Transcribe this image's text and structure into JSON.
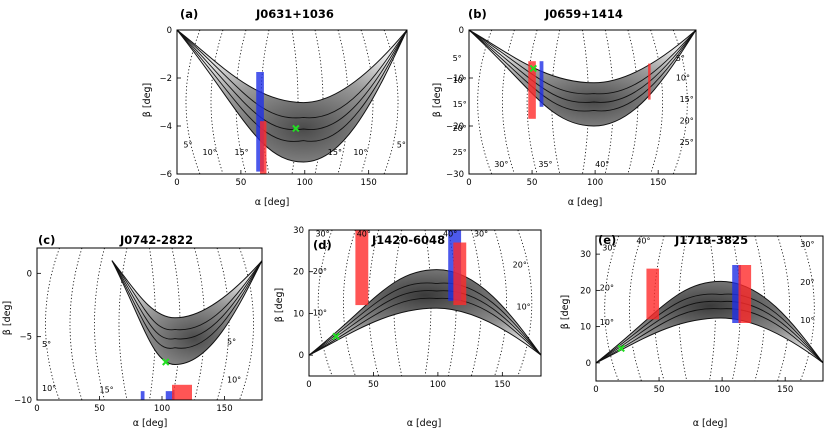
{
  "figure": {
    "colors": {
      "blue": "#1f2fe6",
      "red": "#ff2a2a",
      "green_marker": "#22dd22",
      "axis": "#000000",
      "contour": "#111111"
    }
  },
  "chart_data": [
    {
      "type": "contour",
      "panel": "(a)",
      "title": "J0631+1036",
      "xlabel": "α [deg]",
      "ylabel": "β [deg]",
      "xlim": [
        0,
        180
      ],
      "ylim": [
        -6,
        0
      ],
      "xticks": [
        0,
        50,
        100,
        150
      ],
      "yticks": [
        0,
        -2,
        -4,
        -6
      ],
      "xtick_labels": [
        "0",
        "50",
        "100",
        "150"
      ],
      "ytick_labels": [
        "0",
        "−2",
        "−4",
        "−6"
      ],
      "contour_labels": [
        {
          "text": "5°",
          "x": 5,
          "y": -4.9
        },
        {
          "text": "10°",
          "x": 20,
          "y": -5.2
        },
        {
          "text": "15°",
          "x": 45,
          "y": -5.2
        },
        {
          "text": "15°",
          "x": 118,
          "y": -5.2
        },
        {
          "text": "10°",
          "x": 138,
          "y": -5.2
        },
        {
          "text": "5°",
          "x": 172,
          "y": -4.9
        }
      ],
      "bars": [
        {
          "color": "blue",
          "x": [
            62,
            68
          ],
          "y": [
            -5.9,
            -1.75
          ]
        },
        {
          "color": "red",
          "x": [
            65,
            70
          ],
          "y": [
            -6.0,
            -3.8
          ]
        }
      ],
      "marker": {
        "x": 93,
        "y": -4.1
      },
      "region": {
        "x": [
          0,
          180
        ],
        "y_min": -5.5,
        "y_edge": 0
      }
    },
    {
      "type": "contour",
      "panel": "(b)",
      "title": "J0659+1414",
      "xlabel": "α [deg]",
      "ylabel": "β [deg]",
      "xlim": [
        0,
        180
      ],
      "ylim": [
        -30,
        0
      ],
      "xticks": [
        0,
        50,
        100,
        150
      ],
      "yticks": [
        0,
        -10,
        -20,
        -30
      ],
      "xtick_labels": [
        "0",
        "50",
        "100",
        "150"
      ],
      "ytick_labels": [
        "0",
        "−10",
        "−20",
        "−30"
      ],
      "contour_labels": [
        {
          "text": "5°",
          "x": -13,
          "y": -6.5
        },
        {
          "text": "10°",
          "x": -13,
          "y": -11
        },
        {
          "text": "15°",
          "x": -13,
          "y": -16
        },
        {
          "text": "20°",
          "x": -13,
          "y": -21
        },
        {
          "text": "25°",
          "x": -13,
          "y": -26
        },
        {
          "text": "30°",
          "x": 20,
          "y": -28.5
        },
        {
          "text": "35°",
          "x": 55,
          "y": -28.5
        },
        {
          "text": "40°",
          "x": 100,
          "y": -28.5
        },
        {
          "text": "5°",
          "x": 164,
          "y": -6.5
        },
        {
          "text": "10°",
          "x": 164,
          "y": -10.5
        },
        {
          "text": "15°",
          "x": 167,
          "y": -15
        },
        {
          "text": "20°",
          "x": 167,
          "y": -19.5
        },
        {
          "text": "25°",
          "x": 167,
          "y": -24
        }
      ],
      "bars": [
        {
          "color": "red",
          "x": [
            47,
            53
          ],
          "y": [
            -18.5,
            -6.5
          ]
        },
        {
          "color": "blue",
          "x": [
            56,
            59
          ],
          "y": [
            -16,
            -6.5
          ]
        },
        {
          "color": "red",
          "x": [
            142,
            144
          ],
          "y": [
            -14.5,
            -7
          ]
        }
      ],
      "marker": {
        "x": 51,
        "y": -8
      },
      "region": {
        "x": [
          0,
          180
        ],
        "y_min": -20,
        "y_edge": 0
      }
    },
    {
      "type": "contour",
      "panel": "(c)",
      "title": "J0742-2822",
      "xlabel": "α [deg]",
      "ylabel": "β [deg]",
      "xlim": [
        0,
        180
      ],
      "ylim": [
        -10,
        2
      ],
      "xticks": [
        0,
        50,
        100,
        150
      ],
      "yticks": [
        0,
        -5,
        -10
      ],
      "xtick_labels": [
        "0",
        "50",
        "100",
        "150"
      ],
      "ytick_labels": [
        "0",
        "−5",
        "−10"
      ],
      "contour_labels": [
        {
          "text": "5°",
          "x": 4,
          "y": -5.8
        },
        {
          "text": "10°",
          "x": 4,
          "y": -9.3
        },
        {
          "text": "15°",
          "x": 50,
          "y": -9.4
        },
        {
          "text": "5°",
          "x": 152,
          "y": -5.6
        },
        {
          "text": "10°",
          "x": 152,
          "y": -8.6
        }
      ],
      "bars": [
        {
          "color": "blue",
          "x": [
            83,
            86
          ],
          "y": [
            -10,
            -9.3
          ]
        },
        {
          "color": "blue",
          "x": [
            103,
            110
          ],
          "y": [
            -10,
            -9.3
          ]
        },
        {
          "color": "red",
          "x": [
            108,
            124
          ],
          "y": [
            -10,
            -8.8
          ]
        }
      ],
      "marker": {
        "x": 103,
        "y": -7.0
      },
      "region": {
        "x": [
          60,
          180
        ],
        "y_min": -7.2,
        "y_edge": 1
      }
    },
    {
      "type": "contour",
      "panel": "(d)",
      "title": "J1420-6048",
      "xlabel": "α [deg]",
      "ylabel": "β [deg]",
      "xlim": [
        0,
        180
      ],
      "ylim": [
        -5,
        30
      ],
      "xticks": [
        0,
        50,
        100,
        150
      ],
      "yticks": [
        0,
        10,
        20,
        30
      ],
      "xtick_labels": [
        "0",
        "50",
        "100",
        "150"
      ],
      "ytick_labels": [
        "0",
        "10",
        "20",
        "30"
      ],
      "contour_labels": [
        {
          "text": "30°",
          "x": 5,
          "y": 28.5
        },
        {
          "text": "40°",
          "x": 37,
          "y": 28.5
        },
        {
          "text": "20°",
          "x": 3,
          "y": 19.5
        },
        {
          "text": "10°",
          "x": 3,
          "y": 9.5
        },
        {
          "text": "40°",
          "x": 104,
          "y": 28.5
        },
        {
          "text": "30°",
          "x": 128,
          "y": 28.5
        },
        {
          "text": "20°",
          "x": 158,
          "y": 21
        },
        {
          "text": "10°",
          "x": 161,
          "y": 11
        }
      ],
      "bars": [
        {
          "color": "red",
          "x": [
            36,
            46
          ],
          "y": [
            12,
            31
          ]
        },
        {
          "color": "blue",
          "x": [
            108,
            118
          ],
          "y": [
            13,
            31
          ]
        },
        {
          "color": "red",
          "x": [
            112,
            122
          ],
          "y": [
            12,
            27
          ]
        }
      ],
      "marker": {
        "x": 21,
        "y": 4.5
      },
      "region": {
        "x": [
          0,
          180
        ],
        "y_max": 20.5,
        "y_edge": 0
      }
    },
    {
      "type": "contour",
      "panel": "(e)",
      "title": "J1718-3825",
      "xlabel": "α [deg]",
      "ylabel": "β [deg]",
      "xlim": [
        0,
        180
      ],
      "ylim": [
        -5,
        35
      ],
      "xticks": [
        0,
        50,
        100,
        150
      ],
      "yticks": [
        0,
        10,
        20,
        30
      ],
      "xtick_labels": [
        "0",
        "50",
        "100",
        "150"
      ],
      "ytick_labels": [
        "0",
        "10",
        "20",
        "30"
      ],
      "contour_labels": [
        {
          "text": "30°",
          "x": 5,
          "y": 31
        },
        {
          "text": "40°",
          "x": 32,
          "y": 33
        },
        {
          "text": "20°",
          "x": 3,
          "y": 20
        },
        {
          "text": "10°",
          "x": 3,
          "y": 10.5
        },
        {
          "text": "30°",
          "x": 162,
          "y": 32
        },
        {
          "text": "20°",
          "x": 162,
          "y": 21.5
        },
        {
          "text": "10°",
          "x": 162,
          "y": 11
        }
      ],
      "bars": [
        {
          "color": "red",
          "x": [
            40,
            50
          ],
          "y": [
            12,
            26
          ]
        },
        {
          "color": "blue",
          "x": [
            108,
            115
          ],
          "y": [
            11,
            27
          ]
        },
        {
          "color": "red",
          "x": [
            113,
            123
          ],
          "y": [
            11,
            27
          ]
        }
      ],
      "marker": {
        "x": 20,
        "y": 4
      },
      "region": {
        "x": [
          0,
          180
        ],
        "y_max": 22.5,
        "y_edge": 0
      }
    }
  ]
}
